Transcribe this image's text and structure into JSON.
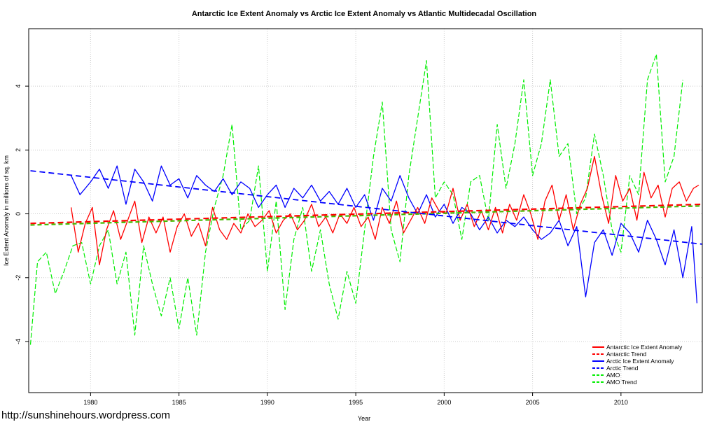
{
  "watermark": "http://sunshinehours.wordpress.com",
  "chart_data": {
    "type": "line",
    "title": "Antarctic Ice Extent Anomaly vs Arctic Ice Extent Anomaly vs Atlantic Multidecadal Oscillation",
    "xlabel": "Year",
    "ylabel": "Ice Extent Anomaly in millions of sq. km",
    "xlim": [
      1976.5,
      2014.6
    ],
    "ylim": [
      -5.6,
      5.8
    ],
    "xticks": [
      1980,
      1985,
      1990,
      1995,
      2000,
      2005,
      2010
    ],
    "yticks": [
      -4,
      -2,
      0,
      2,
      4
    ],
    "grid": true,
    "legend_position": "bottom-right",
    "colors": {
      "antarctic": "#ff0000",
      "arctic": "#0000ff",
      "amo": "#00ee00",
      "amo_trend": "#44bb00"
    },
    "legend": [
      {
        "label": "Antarctic Ice Extent Anomaly",
        "color": "#ff0000",
        "style": "solid"
      },
      {
        "label": "Antarctic Trend",
        "color": "#ff0000",
        "style": "dashed"
      },
      {
        "label": "Arctic Ice Extent Anomaly",
        "color": "#0000ff",
        "style": "solid"
      },
      {
        "label": "Arctic Trend",
        "color": "#0000ff",
        "style": "dashed"
      },
      {
        "label": "AMO",
        "color": "#00ee00",
        "style": "dashed"
      },
      {
        "label": "AMO Trend",
        "color": "#00ee00",
        "style": "dashed"
      }
    ],
    "series": [
      {
        "key": "amo",
        "style": "dashed",
        "x": [
          1976.6,
          1977.0,
          1977.5,
          1978.0,
          1978.5,
          1979.0,
          1979.5,
          1980.0,
          1980.5,
          1981.0,
          1981.5,
          1982.0,
          1982.5,
          1983.0,
          1983.5,
          1984.0,
          1984.5,
          1985.0,
          1985.5,
          1986.0,
          1986.5,
          1987.0,
          1987.5,
          1988.0,
          1988.5,
          1989.0,
          1989.5,
          1990.0,
          1990.5,
          1991.0,
          1991.5,
          1992.0,
          1992.5,
          1993.0,
          1993.5,
          1994.0,
          1994.5,
          1995.0,
          1995.5,
          1996.0,
          1996.5,
          1997.0,
          1997.5,
          1998.0,
          1998.5,
          1999.0,
          1999.5,
          2000.0,
          2000.5,
          2001.0,
          2001.5,
          2002.0,
          2002.5,
          2003.0,
          2003.5,
          2004.0,
          2004.5,
          2005.0,
          2005.5,
          2006.0,
          2006.5,
          2007.0,
          2007.5,
          2008.0,
          2008.5,
          2009.0,
          2009.5,
          2010.0,
          2010.5,
          2011.0,
          2011.5,
          2012.0,
          2012.5,
          2013.0,
          2013.5
        ],
        "values": [
          -4.1,
          -1.5,
          -1.2,
          -2.5,
          -1.8,
          -1.0,
          -0.9,
          -2.2,
          -1.0,
          -0.5,
          -2.2,
          -1.2,
          -3.8,
          -1.0,
          -2.2,
          -3.2,
          -2.0,
          -3.6,
          -2.0,
          -3.8,
          -1.2,
          0.2,
          1.2,
          2.8,
          -0.5,
          -0.2,
          1.5,
          -1.8,
          0.4,
          -3.0,
          -0.8,
          0.2,
          -1.8,
          -0.5,
          -2.2,
          -3.3,
          -1.8,
          -2.8,
          -0.5,
          1.8,
          3.5,
          -0.5,
          -1.5,
          1.2,
          3.0,
          4.8,
          0.5,
          1.0,
          0.6,
          -0.8,
          1.0,
          1.2,
          -0.2,
          2.8,
          0.8,
          2.2,
          4.2,
          1.2,
          2.2,
          4.2,
          1.8,
          2.2,
          0.0,
          0.5,
          2.5,
          1.2,
          -0.5,
          -1.2,
          1.2,
          0.6,
          4.2,
          5.0,
          1.0,
          1.8,
          4.2
        ]
      },
      {
        "key": "arctic",
        "style": "solid",
        "x": [
          1978.9,
          1979.4,
          1980.0,
          1980.5,
          1981.0,
          1981.5,
          1982.0,
          1982.5,
          1983.0,
          1983.5,
          1984.0,
          1984.5,
          1985.0,
          1985.5,
          1986.0,
          1986.5,
          1987.0,
          1987.5,
          1988.0,
          1988.5,
          1989.0,
          1989.5,
          1990.0,
          1990.5,
          1991.0,
          1991.5,
          1992.0,
          1992.5,
          1993.0,
          1993.5,
          1994.0,
          1994.5,
          1995.0,
          1995.5,
          1996.0,
          1996.5,
          1997.0,
          1997.5,
          1998.0,
          1998.5,
          1999.0,
          1999.5,
          2000.0,
          2000.5,
          2001.0,
          2001.5,
          2002.0,
          2002.5,
          2003.0,
          2003.5,
          2004.0,
          2004.5,
          2005.0,
          2005.5,
          2006.0,
          2006.5,
          2007.0,
          2007.5,
          2008.0,
          2008.5,
          2009.0,
          2009.5,
          2010.0,
          2010.5,
          2011.0,
          2011.5,
          2012.0,
          2012.5,
          2013.0,
          2013.5,
          2014.0,
          2014.3
        ],
        "values": [
          1.2,
          0.6,
          1.0,
          1.4,
          0.8,
          1.5,
          0.3,
          1.4,
          1.0,
          0.4,
          1.5,
          0.9,
          1.1,
          0.5,
          1.2,
          0.9,
          0.7,
          1.1,
          0.6,
          1.0,
          0.8,
          0.2,
          0.6,
          0.9,
          0.2,
          0.8,
          0.5,
          0.9,
          0.4,
          0.7,
          0.3,
          0.8,
          0.2,
          0.6,
          -0.2,
          0.8,
          0.4,
          1.2,
          0.5,
          0.0,
          0.6,
          -0.1,
          0.3,
          -0.3,
          0.2,
          0.0,
          -0.5,
          -0.1,
          -0.6,
          -0.2,
          -0.4,
          -0.1,
          -0.5,
          -0.8,
          -0.6,
          -0.2,
          -1.0,
          -0.4,
          -2.6,
          -0.9,
          -0.5,
          -1.3,
          -0.3,
          -0.6,
          -1.2,
          -0.2,
          -0.8,
          -1.6,
          -0.5,
          -2.0,
          -0.4,
          -2.8
        ]
      },
      {
        "key": "antarctic",
        "style": "solid",
        "x": [
          1978.9,
          1979.3,
          1979.7,
          1980.1,
          1980.5,
          1980.9,
          1981.3,
          1981.7,
          1982.1,
          1982.5,
          1982.9,
          1983.3,
          1983.7,
          1984.1,
          1984.5,
          1984.9,
          1985.3,
          1985.7,
          1986.1,
          1986.5,
          1986.9,
          1987.3,
          1987.7,
          1988.1,
          1988.5,
          1988.9,
          1989.3,
          1989.7,
          1990.1,
          1990.5,
          1990.9,
          1991.3,
          1991.7,
          1992.1,
          1992.5,
          1992.9,
          1993.3,
          1993.7,
          1994.1,
          1994.5,
          1994.9,
          1995.3,
          1995.7,
          1996.1,
          1996.5,
          1996.9,
          1997.3,
          1997.7,
          1998.1,
          1998.5,
          1998.9,
          1999.3,
          1999.7,
          2000.1,
          2000.5,
          2000.9,
          2001.3,
          2001.7,
          2002.1,
          2002.5,
          2002.9,
          2003.3,
          2003.7,
          2004.1,
          2004.5,
          2004.9,
          2005.3,
          2005.7,
          2006.1,
          2006.5,
          2006.9,
          2007.3,
          2007.7,
          2008.1,
          2008.5,
          2008.9,
          2009.3,
          2009.7,
          2010.1,
          2010.5,
          2010.9,
          2011.3,
          2011.7,
          2012.1,
          2012.5,
          2012.9,
          2013.3,
          2013.7,
          2014.1,
          2014.4
        ],
        "values": [
          0.2,
          -1.2,
          -0.3,
          0.2,
          -1.6,
          -0.5,
          0.1,
          -0.8,
          -0.2,
          0.4,
          -0.9,
          -0.1,
          -0.6,
          -0.1,
          -1.2,
          -0.4,
          0.0,
          -0.7,
          -0.3,
          -1.0,
          0.2,
          -0.5,
          -0.8,
          -0.3,
          -0.6,
          0.0,
          -0.4,
          -0.2,
          0.1,
          -0.6,
          -0.2,
          0.0,
          -0.5,
          -0.2,
          0.3,
          -0.4,
          -0.1,
          -0.6,
          0.0,
          -0.3,
          0.2,
          -0.4,
          -0.1,
          -0.8,
          0.2,
          -0.3,
          0.4,
          -0.6,
          -0.2,
          0.2,
          -0.3,
          0.5,
          0.1,
          0.0,
          0.8,
          -0.2,
          0.3,
          -0.4,
          0.1,
          -0.5,
          0.2,
          -0.6,
          0.3,
          -0.2,
          0.6,
          0.0,
          -0.8,
          0.4,
          0.9,
          -0.2,
          0.6,
          -0.5,
          0.3,
          0.8,
          1.8,
          0.6,
          -0.3,
          1.2,
          0.4,
          0.8,
          -0.2,
          1.3,
          0.5,
          0.9,
          -0.1,
          0.8,
          1.0,
          0.4,
          0.8,
          0.9
        ]
      },
      {
        "key": "amo_trend",
        "style": "dashed",
        "x": [
          1976.6,
          2014.6
        ],
        "values": [
          -0.35,
          0.25
        ]
      },
      {
        "key": "antarctic_trend",
        "style": "dashed",
        "x": [
          1976.6,
          2014.6
        ],
        "values": [
          -0.3,
          0.3
        ]
      },
      {
        "key": "arctic_trend",
        "style": "dashed",
        "x": [
          1976.6,
          2014.6
        ],
        "values": [
          1.35,
          -0.95
        ]
      }
    ]
  }
}
